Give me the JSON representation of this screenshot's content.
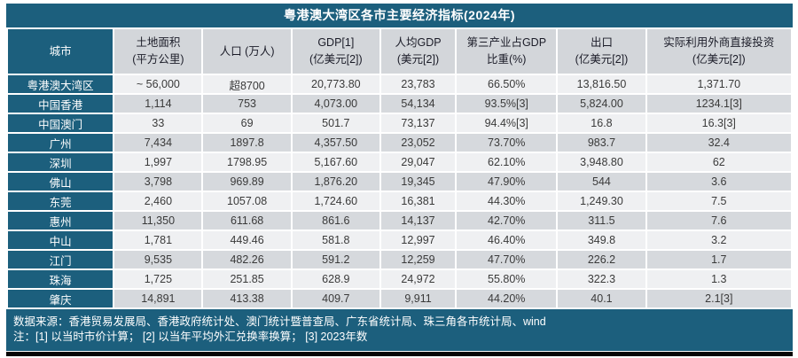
{
  "title": "粤港澳大湾区各市主要经济指标(2024年)",
  "chart_data": {
    "type": "table",
    "title": "粤港澳大湾区各市主要经济指标(2024年)",
    "columns": [
      {
        "line1": "城市",
        "line2": ""
      },
      {
        "line1": "土地面积",
        "line2": "(平方公里)"
      },
      {
        "line1": "人口 (万人)",
        "line2": ""
      },
      {
        "line1": "GDP[1]",
        "line2": "(亿美元[2])"
      },
      {
        "line1": "人均GDP",
        "line2": "(美元[2])"
      },
      {
        "line1": "第三产业占GDP",
        "line2": "比重(%)"
      },
      {
        "line1": "出口",
        "line2": "(亿美元[2])"
      },
      {
        "line1": "实际利用外商直接投资",
        "line2": "(亿美元[2])"
      }
    ],
    "rows": [
      {
        "city": "粤港澳大湾区",
        "values": [
          "~ 56,000",
          "超8700",
          "20,773.80",
          "23,783",
          "66.50%",
          "13,816.50",
          "1,371.70"
        ]
      },
      {
        "city": "中国香港",
        "values": [
          "1,114",
          "753",
          "4,073.00",
          "54,134",
          "93.5%[3]",
          "5,824.00",
          "1234.1[3]"
        ]
      },
      {
        "city": "中国澳门",
        "values": [
          "33",
          "69",
          "501.7",
          "73,137",
          "94.4%[3]",
          "16.8",
          "16.3[3]"
        ]
      },
      {
        "city": "广州",
        "values": [
          "7,434",
          "1897.8",
          "4,357.50",
          "23,052",
          "73.70%",
          "983.7",
          "32.4"
        ]
      },
      {
        "city": "深圳",
        "values": [
          "1,997",
          "1798.95",
          "5,167.60",
          "29,047",
          "62.10%",
          "3,948.80",
          "62"
        ]
      },
      {
        "city": "佛山",
        "values": [
          "3,798",
          "969.89",
          "1,876.20",
          "19,345",
          "47.90%",
          "544",
          "3.6"
        ]
      },
      {
        "city": "东莞",
        "values": [
          "2,460",
          "1057.08",
          "1,724.60",
          "16,381",
          "44.30%",
          "1,249.30",
          "7.5"
        ]
      },
      {
        "city": "惠州",
        "values": [
          "11,350",
          "611.68",
          "861.6",
          "14,137",
          "42.70%",
          "311.5",
          "7.6"
        ]
      },
      {
        "city": "中山",
        "values": [
          "1,781",
          "449.46",
          "581.8",
          "12,997",
          "46.40%",
          "349.8",
          "3.2"
        ]
      },
      {
        "city": "江门",
        "values": [
          "9,535",
          "482.26",
          "591.2",
          "12,259",
          "47.70%",
          "226.2",
          "1.7"
        ]
      },
      {
        "city": "珠海",
        "values": [
          "1,725",
          "251.85",
          "628.9",
          "24,972",
          "55.80%",
          "322.3",
          "1.3"
        ]
      },
      {
        "city": "肇庆",
        "values": [
          "14,891",
          "413.38",
          "409.7",
          "9,911",
          "44.20%",
          "40.1",
          "2.1[3]"
        ]
      }
    ],
    "footnotes": {
      "source_line": "数据来源：香港贸易发展局、香港政府统计处、澳门统计暨普查局、广东省统计局、珠三角各市统计局、wind",
      "note_line": "注：[1] 以当时市价计算；  [2] 以当年平均外汇兑换率换算；  [3] 2023年数"
    }
  },
  "colors": {
    "teal": "#1C5F7D",
    "header_gray": "#D3D6DA",
    "row_light": "#EFF0F2",
    "row_dark": "#D6D9DD",
    "bottom_bar": "#060606",
    "header_text": "#1B1C28",
    "data_text": "#3A3A3A"
  }
}
